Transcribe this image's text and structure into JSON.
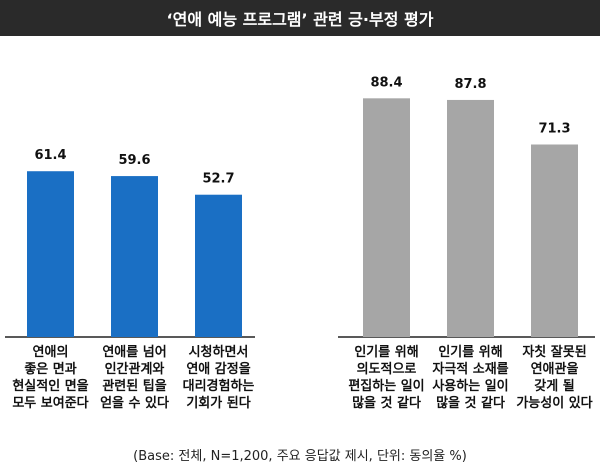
{
  "chart_data": {
    "type": "bar",
    "title": "‘연애 예능 프로그램’ 관련 긍·부정 평가",
    "groups": [
      {
        "name": "",
        "color": "#1a6fc4",
        "categories": [
          [
            "연애의",
            "좋은 면과",
            "현실적인 면을",
            "모두 보여준다"
          ],
          [
            "연애를 넘어",
            "인간관계와",
            "관련된 팁을",
            "얻을 수 있다"
          ],
          [
            "시청하면서",
            "연애 감정을",
            "대리경험하는",
            "기회가 된다"
          ]
        ],
        "values": [
          61.4,
          59.6,
          52.7
        ]
      },
      {
        "name": "",
        "color": "#a6a6a6",
        "categories": [
          [
            "인기를 위해",
            "의도적으로",
            "편집하는 일이",
            "많을 것 같다"
          ],
          [
            "인기를 위해",
            "자극적 소재를",
            "사용하는 일이",
            "많을 것 같다"
          ],
          [
            "자칫 잘못된",
            "연애관을",
            "갖게 될",
            "가능성이 있다"
          ]
        ],
        "values": [
          88.4,
          87.8,
          71.3
        ]
      }
    ],
    "ylim": [
      0,
      100
    ],
    "unit": "%",
    "grid": false,
    "legend": "none",
    "note": "(Base: 전체, N=1,200, 주요 응답값 제시, 단위: 동의율 %)"
  }
}
